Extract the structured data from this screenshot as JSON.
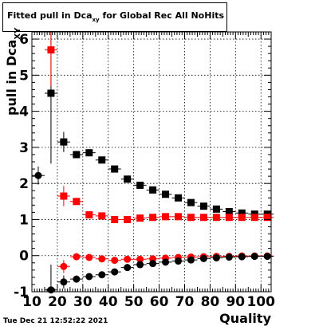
{
  "timestamp": "Tue Dec 21 12:52:22 2021",
  "chart_data": {
    "type": "scatter",
    "title": "Fitted pull in Dca",
    "title_subscript": "xy",
    "title_suffix": " for Global Rec All NoHits",
    "xlabel": "Quality",
    "ylabel": "pull in Dca",
    "ylabel_subscript": "XY",
    "xlim": [
      10,
      104
    ],
    "ylim": [
      -1,
      6.2
    ],
    "x_ticks": [
      10,
      20,
      30,
      40,
      50,
      60,
      70,
      80,
      90,
      100
    ],
    "y_ticks": [
      -1,
      0,
      1,
      2,
      3,
      4,
      5,
      6
    ],
    "grid": true,
    "series": [
      {
        "color": "#000000",
        "marker": "square",
        "x": [
          17.5,
          22.5,
          27.5,
          32.5,
          37.5,
          42.5,
          47.5,
          52.5,
          57.5,
          62.5,
          67.5,
          72.5,
          77.5,
          82.5,
          87.5,
          92.5,
          97.5,
          102.5
        ],
        "y": [
          4.5,
          3.15,
          2.8,
          2.85,
          2.65,
          2.4,
          2.12,
          1.95,
          1.82,
          1.7,
          1.6,
          1.47,
          1.37,
          1.29,
          1.22,
          1.18,
          1.15,
          1.15
        ],
        "err": [
          1.95,
          0.28,
          0.1,
          0.07,
          0.05,
          0.04,
          0.03,
          0.03,
          0.02,
          0.02,
          0.02,
          0.02,
          0.02,
          0.02,
          0.02,
          0.02,
          0.02,
          0.02
        ]
      },
      {
        "color": "#ff0000",
        "marker": "square",
        "x": [
          17.5,
          22.5,
          27.5,
          32.5,
          37.5,
          42.5,
          47.5,
          52.5,
          57.5,
          62.5,
          67.5,
          72.5,
          77.5,
          82.5,
          87.5,
          92.5,
          97.5,
          102.5
        ],
        "y": [
          5.7,
          1.65,
          1.5,
          1.13,
          1.1,
          1.0,
          1.0,
          1.04,
          1.06,
          1.08,
          1.08,
          1.06,
          1.06,
          1.06,
          1.06,
          1.06,
          1.06,
          1.06
        ],
        "err": [
          1.0,
          0.28,
          0.08,
          0.06,
          0.04,
          0.03,
          0.03,
          0.02,
          0.02,
          0.02,
          0.02,
          0.02,
          0.02,
          0.02,
          0.02,
          0.02,
          0.02,
          0.02
        ]
      },
      {
        "color": "#ff0000",
        "marker": "circle",
        "x": [
          22.5,
          27.5,
          32.5,
          37.5,
          42.5,
          47.5,
          52.5,
          57.5,
          62.5,
          67.5,
          72.5,
          77.5,
          82.5,
          87.5,
          92.5,
          97.5,
          102.5
        ],
        "y": [
          -0.3,
          -0.03,
          -0.05,
          -0.09,
          -0.13,
          -0.1,
          -0.1,
          -0.09,
          -0.07,
          -0.05,
          -0.04,
          -0.03,
          -0.02,
          -0.02,
          -0.01,
          -0.01,
          -0.01
        ],
        "err": [
          0.18,
          0.06,
          0.05,
          0.04,
          0.03,
          0.03,
          0.02,
          0.02,
          0.02,
          0.02,
          0.02,
          0.02,
          0.02,
          0.02,
          0.02,
          0.02,
          0.02
        ]
      },
      {
        "color": "#000000",
        "marker": "circle",
        "x": [
          12.5,
          17.5,
          22.5,
          27.5,
          32.5,
          37.5,
          42.5,
          47.5,
          52.5,
          57.5,
          62.5,
          67.5,
          72.5,
          77.5,
          82.5,
          87.5,
          92.5,
          97.5,
          102.5
        ],
        "y": [
          2.22,
          -0.95,
          -0.73,
          -0.65,
          -0.58,
          -0.53,
          -0.45,
          -0.33,
          -0.25,
          -0.22,
          -0.18,
          -0.15,
          -0.12,
          -0.08,
          -0.06,
          -0.04,
          -0.03,
          -0.02,
          -0.02
        ],
        "err": [
          0.25,
          0.7,
          0.18,
          0.06,
          0.05,
          0.04,
          0.03,
          0.03,
          0.02,
          0.02,
          0.02,
          0.02,
          0.02,
          0.02,
          0.02,
          0.02,
          0.02,
          0.02,
          0.02
        ]
      }
    ]
  }
}
